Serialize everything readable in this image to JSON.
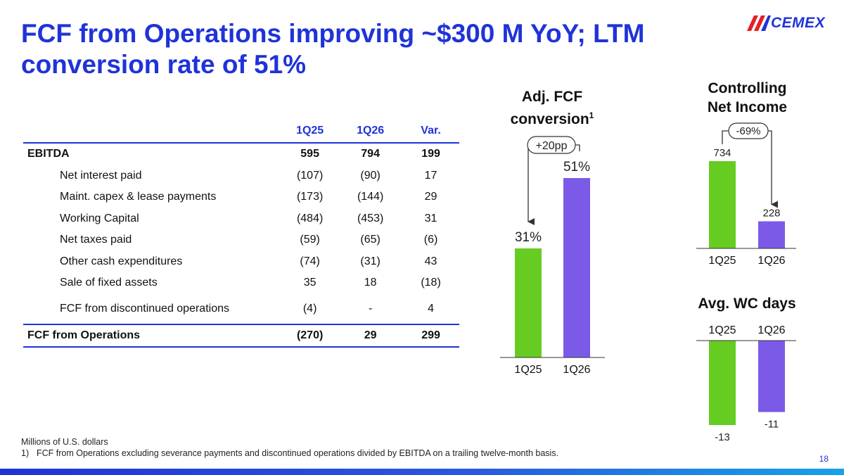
{
  "header": {
    "title": "FCF from Operations improving ~$300 M YoY; LTM conversion rate of 51%",
    "logo": "CEMEX"
  },
  "table": {
    "columns": [
      "1Q25",
      "1Q26",
      "Var."
    ],
    "rows": [
      {
        "label": "EBITDA",
        "v1": "595",
        "v2": "794",
        "var": "199"
      },
      {
        "label": "Net interest paid",
        "v1": "(107)",
        "v2": "(90)",
        "var": "17"
      },
      {
        "label": "Maint. capex & lease payments",
        "v1": "(173)",
        "v2": "(144)",
        "var": "29"
      },
      {
        "label": "Working Capital",
        "v1": "(484)",
        "v2": "(453)",
        "var": "31"
      },
      {
        "label": "Net taxes paid",
        "v1": "(59)",
        "v2": "(65)",
        "var": "(6)"
      },
      {
        "label": "Other cash expenditures",
        "v1": "(74)",
        "v2": "(31)",
        "var": "43"
      },
      {
        "label": "Sale of fixed assets",
        "v1": "35",
        "v2": "18",
        "var": "(18)"
      },
      {
        "label": "FCF from discontinued operations",
        "v1": "(4)",
        "v2": "-",
        "var": "4"
      },
      {
        "label": "FCF from Operations",
        "v1": "(270)",
        "v2": "29",
        "var": "299"
      }
    ]
  },
  "chart_data": [
    {
      "type": "bar",
      "title_line1": "Adj. FCF",
      "title_line2": "conversion",
      "title_sup": "1",
      "categories": [
        "1Q25",
        "1Q26"
      ],
      "values": [
        31,
        51
      ],
      "value_labels": [
        "31%",
        "51%"
      ],
      "ylim": [
        0,
        60
      ],
      "annotation": "+20pp",
      "colors": [
        "#66cc22",
        "#7b5ae8"
      ]
    },
    {
      "type": "bar",
      "title_line1": "Controlling",
      "title_line2": "Net Income",
      "categories": [
        "1Q25",
        "1Q26"
      ],
      "values": [
        734,
        228
      ],
      "value_labels": [
        "734",
        "228"
      ],
      "ylim": [
        0,
        800
      ],
      "annotation": "-69%",
      "colors": [
        "#66cc22",
        "#7b5ae8"
      ]
    },
    {
      "type": "bar",
      "title_line1": "Avg. WC days",
      "categories": [
        "1Q25",
        "1Q26"
      ],
      "values": [
        -13,
        -11
      ],
      "value_labels": [
        "-13",
        "-11"
      ],
      "ylim": [
        -14,
        0
      ],
      "colors": [
        "#66cc22",
        "#7b5ae8"
      ]
    }
  ],
  "footer": {
    "note": "Millions of U.S. dollars",
    "footnote_marker": "1)",
    "footnote": "FCF from Operations excluding severance payments and discontinued operations divided by EBITDA on a trailing twelve-month basis.",
    "page": "18"
  }
}
